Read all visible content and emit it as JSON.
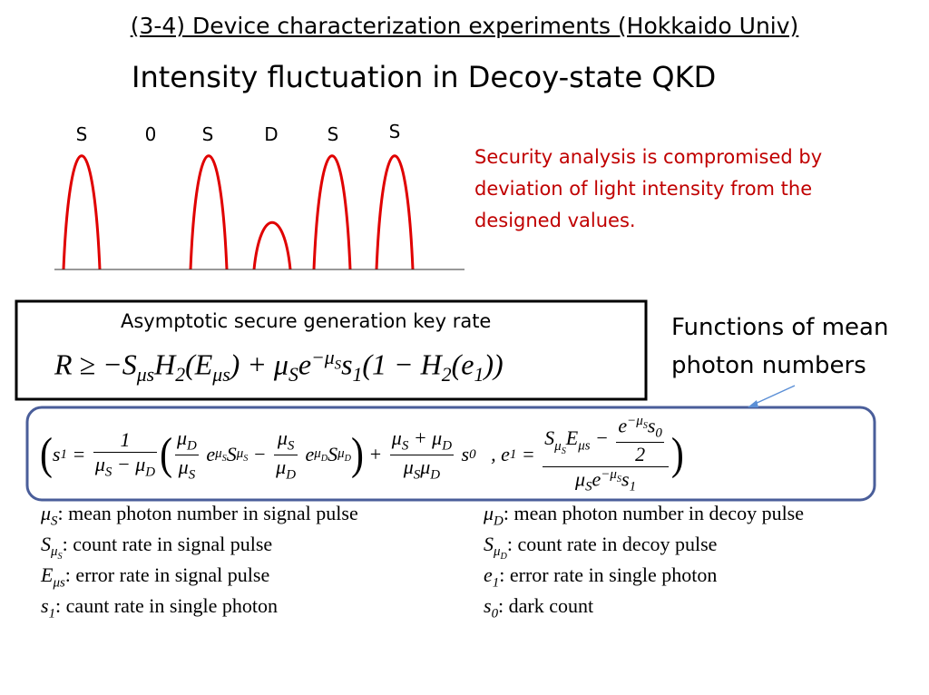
{
  "header": {
    "title": "(3-4) Device characterization experiments (Hokkaido Univ)",
    "subtitle": "Intensity fluctuation in Decoy-state QKD"
  },
  "pulses": {
    "labels": [
      "S",
      "0",
      "S",
      "D",
      "S",
      "S"
    ]
  },
  "note": "Security analysis is compromised by deviation of light intensity from the designed values.",
  "key_rate": {
    "caption": "Asymptotic secure generation key rate",
    "formula": [
      "R ≥ −S",
      {
        "sub": "μs"
      },
      "H",
      {
        "sub": "2"
      },
      "(E",
      {
        "sub": "μs"
      },
      ") + μ",
      {
        "sub": "S"
      },
      "e",
      {
        "sup": [
          "−μ",
          {
            "sub": "S"
          }
        ]
      },
      "s",
      {
        "sub": "1"
      },
      "(1 − H",
      {
        "sub": "2"
      },
      "(e",
      {
        "sub": "1"
      },
      "))"
    ]
  },
  "callout": "Functions of mean photon numbers",
  "formula": [
    {
      "big": "("
    },
    "s",
    {
      "sub": "1"
    },
    " = ",
    {
      "frac": {
        "num": [
          "1"
        ],
        "den": [
          "μ",
          {
            "sub": "S"
          },
          " − μ",
          {
            "sub": "D"
          }
        ]
      }
    },
    {
      "big": "("
    },
    {
      "frac": {
        "num": [
          "μ",
          {
            "sub": "D"
          }
        ],
        "den": [
          "μ",
          {
            "sub": "S"
          }
        ]
      }
    },
    " e",
    {
      "sup": [
        "μ",
        {
          "sub": "S"
        }
      ]
    },
    "S",
    {
      "sub": [
        "μ",
        {
          "sub": "S"
        }
      ]
    },
    " − ",
    {
      "frac": {
        "num": [
          "μ",
          {
            "sub": "S"
          }
        ],
        "den": [
          "μ",
          {
            "sub": "D"
          }
        ]
      }
    },
    " e",
    {
      "sup": [
        "μ",
        {
          "sub": "D"
        }
      ]
    },
    "S",
    {
      "sub": [
        "μ",
        {
          "sub": "D"
        }
      ]
    },
    {
      "big": ")"
    },
    " + ",
    {
      "frac": {
        "num": [
          "μ",
          {
            "sub": "S"
          },
          " + μ",
          {
            "sub": "D"
          }
        ],
        "den": [
          "μ",
          {
            "sub": "S"
          },
          "μ",
          {
            "sub": "D"
          }
        ]
      }
    },
    " s",
    {
      "sub": "0"
    },
    "   , e",
    {
      "sub": "1"
    },
    " = ",
    {
      "frac": {
        "num": [
          "S",
          {
            "sub": [
              "μ",
              {
                "sub": "S"
              }
            ]
          },
          "E",
          {
            "sub": "μs"
          },
          " − ",
          {
            "frac": {
              "num": [
                "e",
                {
                  "sup": [
                    "−μ",
                    {
                      "sub": "S"
                    }
                  ]
                },
                "s",
                {
                  "sub": "0"
                }
              ],
              "den": [
                "2"
              ]
            }
          }
        ],
        "den": [
          "μ",
          {
            "sub": "S"
          },
          "e",
          {
            "sup": [
              "−μ",
              {
                "sub": "S"
              }
            ]
          },
          "s",
          {
            "sub": "1"
          }
        ]
      }
    },
    {
      "big": ")"
    }
  ],
  "definitions": {
    "left": [
      {
        "symbol": [
          "μ",
          {
            "sub": "S"
          }
        ],
        "text": ": mean photon number in signal pulse"
      },
      {
        "symbol": [
          "S",
          {
            "sub": [
              "μ",
              {
                "sub": "S"
              }
            ]
          }
        ],
        "text": ": count rate in signal pulse"
      },
      {
        "symbol": [
          "E",
          {
            "sub": "μs"
          }
        ],
        "text": ": error rate in signal pulse"
      },
      {
        "symbol": [
          "s",
          {
            "sub": "1"
          }
        ],
        "text": ": caunt rate in single photon"
      }
    ],
    "right": [
      {
        "symbol": [
          "μ",
          {
            "sub": "D"
          }
        ],
        "text": ": mean photon number in decoy pulse"
      },
      {
        "symbol": [
          "S",
          {
            "sub": [
              "μ",
              {
                "sub": "D"
              }
            ]
          }
        ],
        "text": ": count rate in decoy pulse"
      },
      {
        "symbol": [
          "e",
          {
            "sub": "1"
          }
        ],
        "text": ": error rate in single photon"
      },
      {
        "symbol": [
          "s",
          {
            "sub": "0"
          }
        ],
        "text": ": dark count"
      }
    ]
  }
}
